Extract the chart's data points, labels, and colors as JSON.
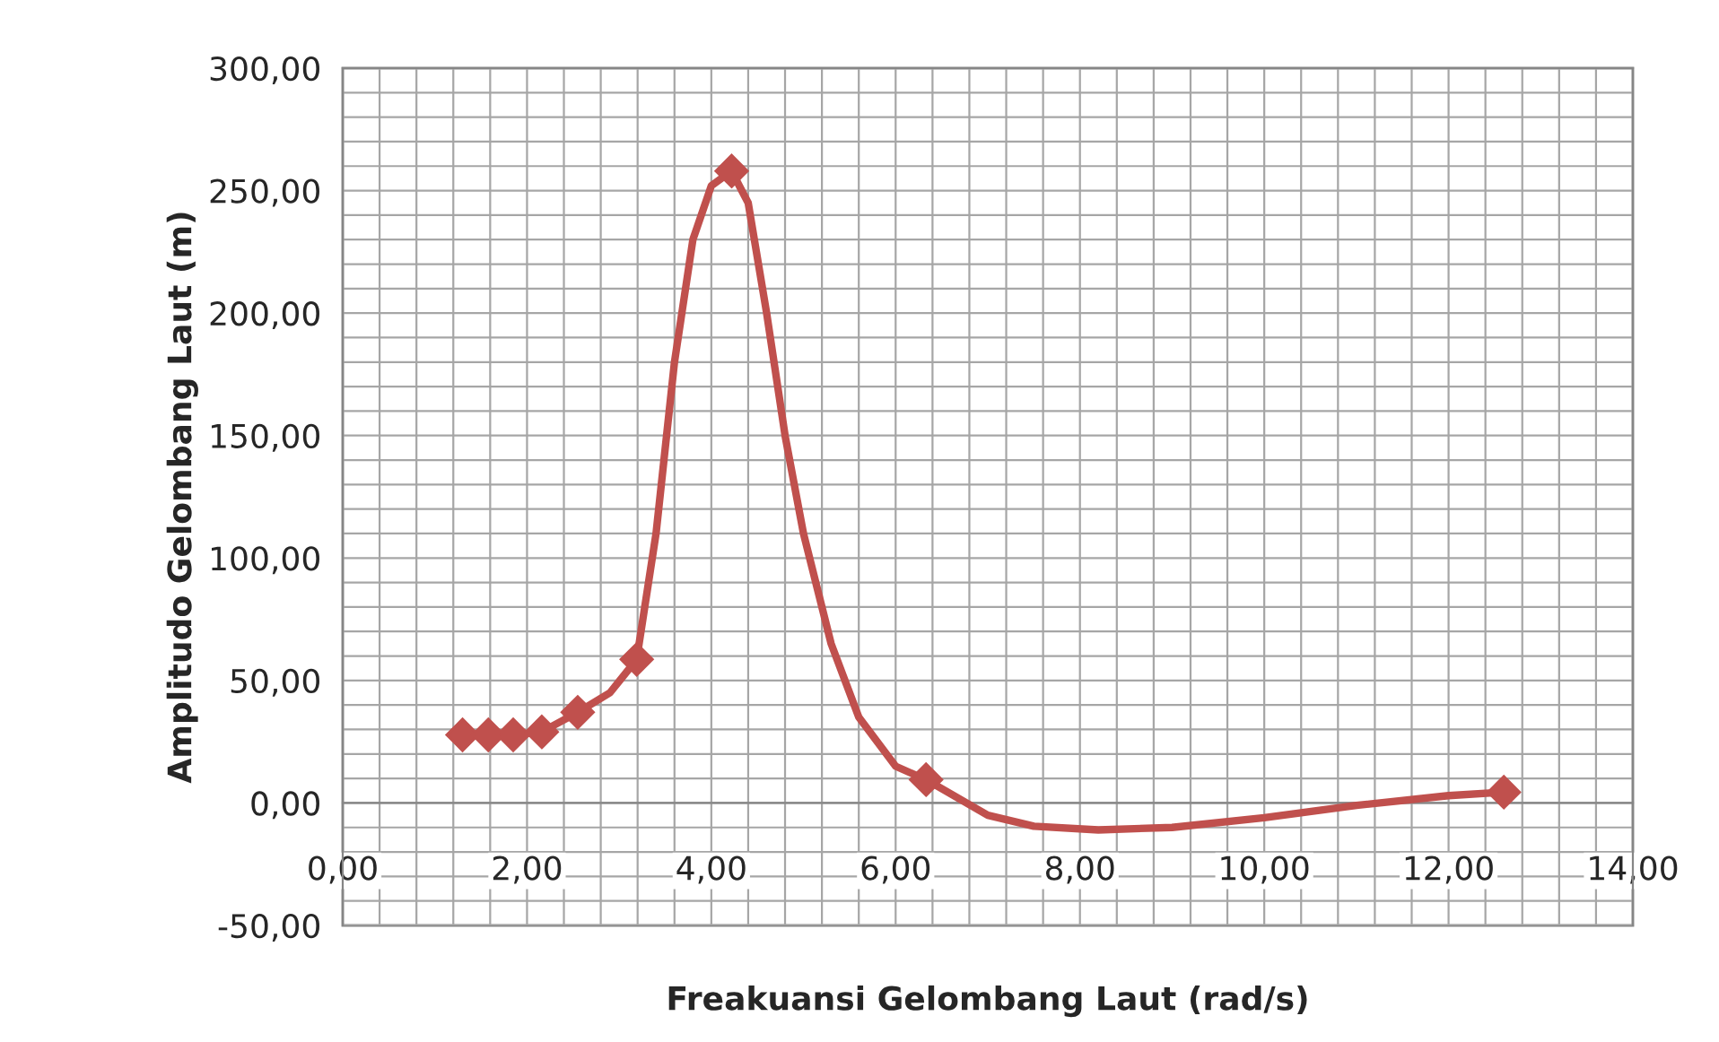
{
  "chart_data": {
    "type": "line",
    "xlabel": "Freakuansi Gelombang Laut (rad/s)",
    "ylabel": "Amplitudo Gelombang Laut (m)",
    "series": [
      {
        "marker": "none",
        "color": "#c0504d",
        "x": [
          1.3,
          1.58,
          1.85,
          2.16,
          2.55,
          2.9,
          3.19,
          3.4,
          3.6,
          3.8,
          4.0,
          4.22,
          4.4,
          4.6,
          4.8,
          5.0,
          5.3,
          5.6,
          6.0,
          6.33,
          7.0,
          7.5,
          8.2,
          9.0,
          10.0,
          11.0,
          12.0,
          12.6
        ],
        "values": [
          27.8,
          27.8,
          27.8,
          29,
          37,
          45,
          58.6,
          110,
          180,
          230,
          252,
          258,
          245,
          200,
          150,
          110,
          65,
          35,
          15,
          9.5,
          -5,
          -9.5,
          -11,
          -10,
          -6,
          -1,
          3,
          4.4
        ]
      },
      {
        "type": "scatter",
        "color": "#c0504d",
        "x": [
          1.3,
          1.58,
          1.85,
          2.16,
          2.55,
          3.19,
          4.22,
          6.33,
          12.6
        ],
        "values": [
          27.8,
          27.8,
          27.8,
          29,
          37,
          58.6,
          258,
          9.5,
          4.4
        ]
      }
    ],
    "xlim": [
      0,
      14
    ],
    "ylim": [
      -50,
      300
    ],
    "xticks": [
      {
        "value": 0,
        "label": "0,00"
      },
      {
        "value": 2,
        "label": "2,00"
      },
      {
        "value": 4,
        "label": "4,00"
      },
      {
        "value": 6,
        "label": "6,00"
      },
      {
        "value": 8,
        "label": "8,00"
      },
      {
        "value": 10,
        "label": "10,00"
      },
      {
        "value": 12,
        "label": "12,00"
      },
      {
        "value": 14,
        "label": "14,00"
      }
    ],
    "yticks": [
      {
        "value": -50,
        "label": "-50,00"
      },
      {
        "value": 0,
        "label": "0,00"
      },
      {
        "value": 50,
        "label": "50,00"
      },
      {
        "value": 100,
        "label": "100,00"
      },
      {
        "value": 150,
        "label": "150,00"
      },
      {
        "value": 200,
        "label": "200,00"
      },
      {
        "value": 250,
        "label": "250,00"
      },
      {
        "value": 300,
        "label": "300,00"
      }
    ],
    "grid": true,
    "marker": "diamond",
    "line_style": "solid",
    "legend": false
  }
}
